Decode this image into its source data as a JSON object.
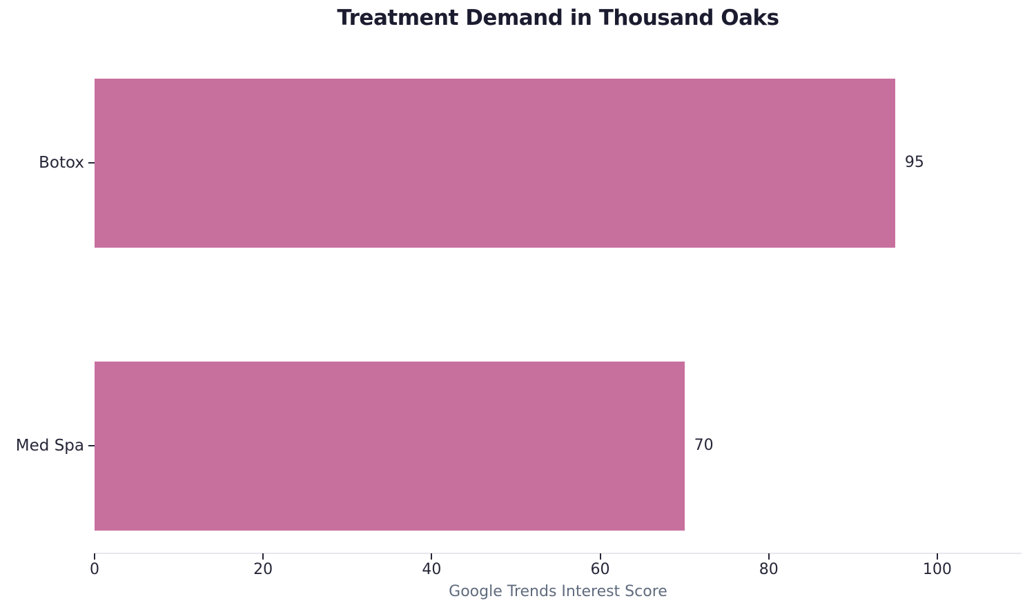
{
  "chart_data": {
    "type": "bar",
    "orientation": "horizontal",
    "title": "Treatment Demand in Thousand Oaks",
    "xlabel": "Google Trends Interest Score",
    "ylabel": "",
    "categories": [
      "Botox",
      "Med Spa"
    ],
    "values": [
      95,
      70
    ],
    "value_labels": [
      "95",
      "70"
    ],
    "xticks": [
      0,
      20,
      40,
      60,
      80,
      100
    ],
    "xlim": [
      0,
      110
    ],
    "grid": false,
    "legend": null,
    "colors": {
      "bar": "#c7709e",
      "title_text": "#1c1c30",
      "tick_text": "#262638",
      "xlabel_text": "#5f6b7d",
      "axis_line": "#e7e7ed",
      "background": "#ffffff"
    }
  }
}
